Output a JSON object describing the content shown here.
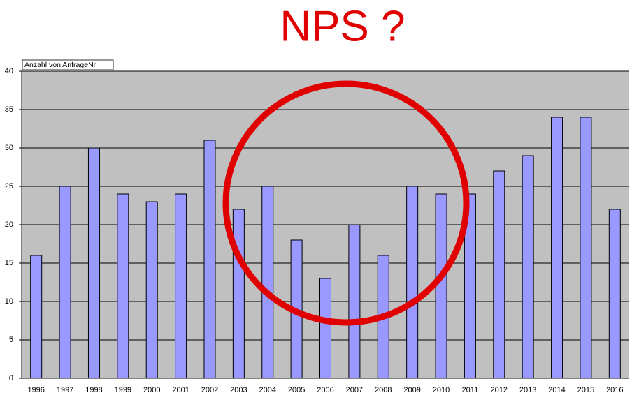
{
  "chart_data": {
    "type": "bar",
    "title": "NPS ?",
    "field_label": "Anzahl von AnfrageNr",
    "categories": [
      "1996",
      "1997",
      "1998",
      "1999",
      "2000",
      "2001",
      "2002",
      "2003",
      "2004",
      "2005",
      "2006",
      "2007",
      "2008",
      "2009",
      "2010",
      "2011",
      "2012",
      "2013",
      "2014",
      "2015",
      "2016"
    ],
    "values": [
      16,
      25,
      30,
      24,
      23,
      24,
      31,
      22,
      25,
      18,
      13,
      20,
      16,
      25,
      24,
      24,
      27,
      29,
      34,
      34,
      22
    ],
    "color": "#9999ff",
    "ylim": [
      0,
      40
    ],
    "yticks": [
      0,
      5,
      10,
      15,
      20,
      25,
      30,
      35,
      40
    ],
    "grid": true
  }
}
